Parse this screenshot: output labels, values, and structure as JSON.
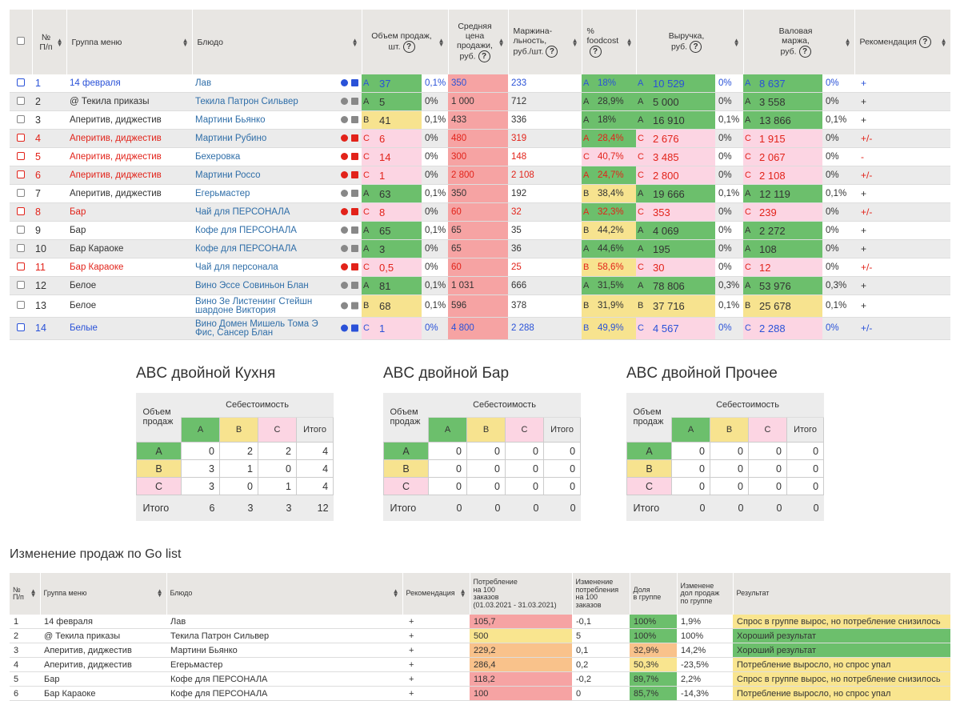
{
  "main_table": {
    "headers": [
      "№\nП/п",
      "Группа меню",
      "Блюдо",
      "Объем продаж,\nшт.",
      "Средняя\nцена\nпродажи,\nруб.",
      "Маржина-\nльность,\nруб./шт.",
      "%\nfoodcost",
      "Выручка,\nруб.",
      "Валовая\nмаржа,\nруб.",
      "Рекомендация"
    ],
    "rows": [
      {
        "num": "1",
        "group": "14 февраля",
        "dish": "Лав",
        "vol_grade": "A",
        "vol": "37",
        "vol_pct": "0,1%",
        "price": "350",
        "margin": "233",
        "fc_grade": "A",
        "fc": "18%",
        "rev_grade": "A",
        "rev": "10 529",
        "rev_pct": "0%",
        "gm_grade": "A",
        "gm": "8 637",
        "gm_pct": "0%",
        "rec": "+",
        "color": "#2a52d8"
      },
      {
        "num": "2",
        "group": "@ Текила приказы",
        "dish": "Текила Патрон Сильвер",
        "vol_grade": "A",
        "vol": "5",
        "vol_pct": "0%",
        "price": "1 000",
        "margin": "712",
        "fc_grade": "A",
        "fc": "28,9%",
        "rev_grade": "A",
        "rev": "5 000",
        "rev_pct": "0%",
        "gm_grade": "A",
        "gm": "3 558",
        "gm_pct": "0%",
        "rec": "+",
        "color": "#333333"
      },
      {
        "num": "3",
        "group": "Аперитив, диджестив",
        "dish": "Мартини Бьянко",
        "vol_grade": "B",
        "vol": "41",
        "vol_pct": "0,1%",
        "price": "433",
        "margin": "336",
        "fc_grade": "A",
        "fc": "18%",
        "rev_grade": "A",
        "rev": "16 910",
        "rev_pct": "0,1%",
        "gm_grade": "A",
        "gm": "13 866",
        "gm_pct": "0,1%",
        "rec": "+",
        "color": "#333333"
      },
      {
        "num": "4",
        "group": "Аперитив, диджестив",
        "dish": "Мартини Рубино",
        "vol_grade": "C",
        "vol": "6",
        "vol_pct": "0%",
        "price": "480",
        "margin": "319",
        "fc_grade": "A",
        "fc": "28,4%",
        "rev_grade": "C",
        "rev": "2 676",
        "rev_pct": "0%",
        "gm_grade": "C",
        "gm": "1 915",
        "gm_pct": "0%",
        "rec": "+/-",
        "color": "#e2231a"
      },
      {
        "num": "5",
        "group": "Аперитив, диджестив",
        "dish": "Бехеровка",
        "vol_grade": "C",
        "vol": "14",
        "vol_pct": "0%",
        "price": "300",
        "margin": "148",
        "fc_grade": "C",
        "fc": "40,7%",
        "rev_grade": "C",
        "rev": "3 485",
        "rev_pct": "0%",
        "gm_grade": "C",
        "gm": "2 067",
        "gm_pct": "0%",
        "rec": "-",
        "color": "#e2231a"
      },
      {
        "num": "6",
        "group": "Аперитив, диджестив",
        "dish": "Мартини Россо",
        "vol_grade": "C",
        "vol": "1",
        "vol_pct": "0%",
        "price": "2 800",
        "margin": "2 108",
        "fc_grade": "A",
        "fc": "24,7%",
        "rev_grade": "C",
        "rev": "2 800",
        "rev_pct": "0%",
        "gm_grade": "C",
        "gm": "2 108",
        "gm_pct": "0%",
        "rec": "+/-",
        "color": "#e2231a"
      },
      {
        "num": "7",
        "group": "Аперитив, диджестив",
        "dish": "Егерьмастер",
        "vol_grade": "A",
        "vol": "63",
        "vol_pct": "0,1%",
        "price": "350",
        "margin": "192",
        "fc_grade": "B",
        "fc": "38,4%",
        "rev_grade": "A",
        "rev": "19 666",
        "rev_pct": "0,1%",
        "gm_grade": "A",
        "gm": "12 119",
        "gm_pct": "0,1%",
        "rec": "+",
        "color": "#333333"
      },
      {
        "num": "8",
        "group": "Бар",
        "dish": "Чай для ПЕРСОНАЛА",
        "vol_grade": "C",
        "vol": "8",
        "vol_pct": "0%",
        "price": "60",
        "margin": "32",
        "fc_grade": "A",
        "fc": "32,3%",
        "rev_grade": "C",
        "rev": "353",
        "rev_pct": "0%",
        "gm_grade": "C",
        "gm": "239",
        "gm_pct": "0%",
        "rec": "+/-",
        "color": "#e2231a"
      },
      {
        "num": "9",
        "group": "Бар",
        "dish": "Кофе для ПЕРСОНАЛА",
        "vol_grade": "A",
        "vol": "65",
        "vol_pct": "0,1%",
        "price": "65",
        "margin": "35",
        "fc_grade": "B",
        "fc": "44,2%",
        "rev_grade": "A",
        "rev": "4 069",
        "rev_pct": "0%",
        "gm_grade": "A",
        "gm": "2 272",
        "gm_pct": "0%",
        "rec": "+",
        "color": "#333333"
      },
      {
        "num": "10",
        "group": "Бар Караоке",
        "dish": "Кофе для ПЕРСОНАЛА",
        "vol_grade": "A",
        "vol": "3",
        "vol_pct": "0%",
        "price": "65",
        "margin": "36",
        "fc_grade": "A",
        "fc": "44,6%",
        "rev_grade": "A",
        "rev": "195",
        "rev_pct": "0%",
        "gm_grade": "A",
        "gm": "108",
        "gm_pct": "0%",
        "rec": "+",
        "color": "#333333"
      },
      {
        "num": "11",
        "group": "Бар Караоке",
        "dish": "Чай для персонала",
        "vol_grade": "C",
        "vol": "0,5",
        "vol_pct": "0%",
        "price": "60",
        "margin": "25",
        "fc_grade": "B",
        "fc": "58,6%",
        "rev_grade": "C",
        "rev": "30",
        "rev_pct": "0%",
        "gm_grade": "C",
        "gm": "12",
        "gm_pct": "0%",
        "rec": "+/-",
        "color": "#e2231a"
      },
      {
        "num": "12",
        "group": "Белое",
        "dish": "Вино Эссе Совиньон Блан",
        "vol_grade": "A",
        "vol": "81",
        "vol_pct": "0,1%",
        "price": "1 031",
        "margin": "666",
        "fc_grade": "A",
        "fc": "31,5%",
        "rev_grade": "A",
        "rev": "78 806",
        "rev_pct": "0,3%",
        "gm_grade": "A",
        "gm": "53 976",
        "gm_pct": "0,3%",
        "rec": "+",
        "color": "#333333"
      },
      {
        "num": "13",
        "group": "Белое",
        "dish": "Вино Зе Листенинг Стейшн шардоне Виктория",
        "vol_grade": "B",
        "vol": "68",
        "vol_pct": "0,1%",
        "price": "596",
        "margin": "378",
        "fc_grade": "B",
        "fc": "31,9%",
        "rev_grade": "B",
        "rev": "37 716",
        "rev_pct": "0,1%",
        "gm_grade": "B",
        "gm": "25 678",
        "gm_pct": "0,1%",
        "rec": "+",
        "color": "#333333"
      },
      {
        "num": "14",
        "group": "Белые",
        "dish": "Вино Домен Мишель Тома Э Фис, Сансер Блан",
        "vol_grade": "C",
        "vol": "1",
        "vol_pct": "0%",
        "price": "4 800",
        "margin": "2 288",
        "fc_grade": "B",
        "fc": "49,9%",
        "rev_grade": "C",
        "rev": "4 567",
        "rev_pct": "0%",
        "gm_grade": "C",
        "gm": "2 288",
        "gm_pct": "0%",
        "rec": "+/-",
        "color": "#2a52d8"
      }
    ]
  },
  "abc": [
    {
      "title": "ABC двойной Кухня",
      "row_header": "Объем\nпродаж",
      "col_header": "Себестоимость",
      "cols": [
        "A",
        "B",
        "C",
        "Итого"
      ],
      "rows": [
        {
          "label": "A",
          "values": [
            "0",
            "2",
            "2",
            "4"
          ]
        },
        {
          "label": "B",
          "values": [
            "3",
            "1",
            "0",
            "4"
          ]
        },
        {
          "label": "C",
          "values": [
            "3",
            "0",
            "1",
            "4"
          ]
        },
        {
          "label": "Итого",
          "values": [
            "6",
            "3",
            "3",
            "12"
          ]
        }
      ]
    },
    {
      "title": "ABC двойной Бар",
      "row_header": "Объем\nпродаж",
      "col_header": "Себестоимость",
      "cols": [
        "A",
        "B",
        "C",
        "Итого"
      ],
      "rows": [
        {
          "label": "A",
          "values": [
            "0",
            "0",
            "0",
            "0"
          ]
        },
        {
          "label": "B",
          "values": [
            "0",
            "0",
            "0",
            "0"
          ]
        },
        {
          "label": "C",
          "values": [
            "0",
            "0",
            "0",
            "0"
          ]
        },
        {
          "label": "Итого",
          "values": [
            "0",
            "0",
            "0",
            "0"
          ]
        }
      ]
    },
    {
      "title": "ABC двойной Прочее",
      "row_header": "Объем\nпродаж",
      "col_header": "Себестоимость",
      "cols": [
        "A",
        "B",
        "C",
        "Итого"
      ],
      "rows": [
        {
          "label": "A",
          "values": [
            "0",
            "0",
            "0",
            "0"
          ]
        },
        {
          "label": "B",
          "values": [
            "0",
            "0",
            "0",
            "0"
          ]
        },
        {
          "label": "C",
          "values": [
            "0",
            "0",
            "0",
            "0"
          ]
        },
        {
          "label": "Итого",
          "values": [
            "0",
            "0",
            "0",
            "0"
          ]
        }
      ]
    }
  ],
  "go_list": {
    "title": "Изменение продаж по Go list",
    "headers": [
      "№\nП/п",
      "Группа меню",
      "Блюдо",
      "Рекомендация",
      "Потребление\nна 100\nзаказов\n(01.03.2021 - 31.03.2021)",
      "Изменение\nпотребления\nна 100\nзаказов",
      "Доля\nв группе",
      "Изменене\nдол продаж\nпо группе",
      "Результат"
    ],
    "rows": [
      {
        "cells": [
          "1",
          "14 февраля",
          "Лав",
          "+",
          "105,7",
          "-0,1",
          "100%",
          "1,9%",
          "Спрос в группе вырос, но потребление снизилось"
        ],
        "colors": {
          "4": "#f6a3a3",
          "6": "#6cbf6c",
          "8": "#f9e58f"
        }
      },
      {
        "cells": [
          "2",
          "@ Текила приказы",
          "Текила Патрон Сильвер",
          "+",
          "500",
          "5",
          "100%",
          "100%",
          "Хороший результат"
        ],
        "colors": {
          "4": "#f9e58f",
          "6": "#6cbf6c",
          "8": "#6cbf6c"
        }
      },
      {
        "cells": [
          "3",
          "Аперитив, диджестив",
          "Мартини Бьянко",
          "+",
          "229,2",
          "0,1",
          "32,9%",
          "14,2%",
          "Хороший результат"
        ],
        "colors": {
          "4": "#f9c28b",
          "6": "#f9c28b",
          "8": "#6cbf6c"
        }
      },
      {
        "cells": [
          "4",
          "Аперитив, диджестив",
          "Егерьмастер",
          "+",
          "286,4",
          "0,2",
          "50,3%",
          "-23,5%",
          "Потребление выросло, но спрос упал"
        ],
        "colors": {
          "4": "#f9c28b",
          "6": "#f9e58f",
          "8": "#f9e58f"
        }
      },
      {
        "cells": [
          "5",
          "Бар",
          "Кофе для ПЕРСОНАЛА",
          "+",
          "118,2",
          "-0,2",
          "89,7%",
          "2,2%",
          "Спрос в группе вырос, но потребление снизилось"
        ],
        "colors": {
          "4": "#f6a3a3",
          "6": "#6cbf6c",
          "8": "#f9e58f"
        }
      },
      {
        "cells": [
          "6",
          "Бар Караоке",
          "Кофе для ПЕРСОНАЛА",
          "+",
          "100",
          "0",
          "85,7%",
          "-14,3%",
          "Потребление выросло, но спрос упал"
        ],
        "colors": {
          "4": "#f6a3a3",
          "6": "#6cbf6c",
          "8": "#f9e58f"
        }
      }
    ]
  }
}
